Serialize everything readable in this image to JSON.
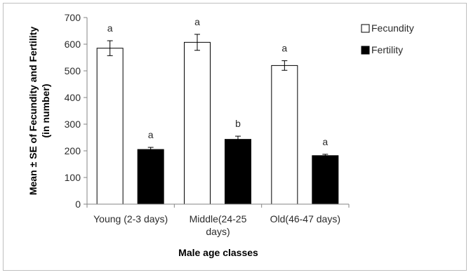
{
  "chart_data": {
    "type": "bar",
    "title": "",
    "xlabel": "Male age classes",
    "ylabel": "Mean ± SE of Fecundity and Fertility (in number)",
    "ylim": [
      0,
      700
    ],
    "yticks": [
      0,
      100,
      200,
      300,
      400,
      500,
      600,
      700
    ],
    "grid": false,
    "legend_position": "top-right",
    "categories": [
      [
        "Young (2-3 days)"
      ],
      [
        "Middle(24-25",
        "days)"
      ],
      [
        "Old(46-47 days)"
      ]
    ],
    "series": [
      {
        "name": "Fecundity",
        "fill": "#ffffff",
        "values": [
          585,
          607,
          520
        ],
        "errors": [
          28,
          30,
          18
        ],
        "letters": [
          "a",
          "a",
          "a"
        ]
      },
      {
        "name": "Fertility",
        "fill": "#000000",
        "values": [
          205,
          243,
          182
        ],
        "errors": [
          8,
          12,
          5
        ],
        "letters": [
          "a",
          "b",
          "a"
        ]
      }
    ]
  }
}
